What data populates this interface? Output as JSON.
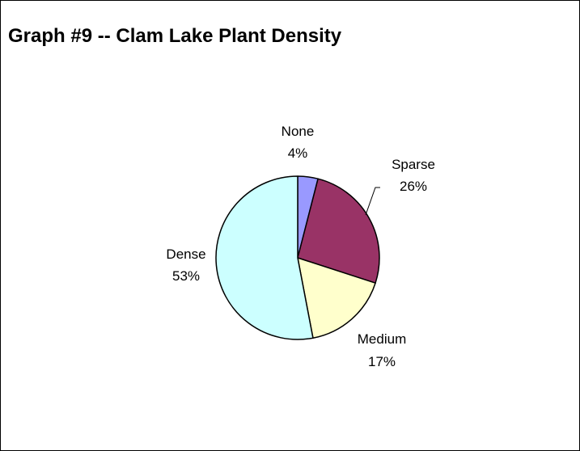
{
  "chart_data": {
    "type": "pie",
    "title": "Graph #9 -- Clam Lake Plant Density",
    "categories": [
      "None",
      "Sparse",
      "Medium",
      "Dense"
    ],
    "values": [
      4,
      26,
      17,
      53
    ],
    "value_labels": [
      "4%",
      "26%",
      "17%",
      "53%"
    ],
    "colors": [
      "#9999ff",
      "#993366",
      "#ffffcc",
      "#ccffff"
    ],
    "start_angle_deg": 0,
    "direction": "clockwise",
    "legend": "none"
  }
}
